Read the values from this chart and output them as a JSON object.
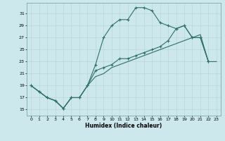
{
  "xlabel": "Humidex (Indice chaleur)",
  "bg_color": "#cce8ec",
  "grid_color": "#b8d8dc",
  "line_color": "#2d7068",
  "y_ticks": [
    15,
    17,
    19,
    21,
    23,
    25,
    27,
    29,
    31
  ],
  "ylim": [
    14.0,
    32.8
  ],
  "xlim": [
    -0.5,
    23.5
  ],
  "line1_x": [
    0,
    1,
    2,
    3,
    4,
    5,
    6,
    7,
    8,
    9,
    10,
    11,
    12,
    13,
    14,
    15,
    16,
    17,
    18,
    19,
    20,
    21,
    22,
    23
  ],
  "line1_y": [
    19.0,
    18.0,
    17.0,
    16.5,
    15.2,
    17.0,
    17.0,
    19.0,
    20.5,
    21.0,
    22.0,
    22.5,
    23.0,
    23.5,
    24.0,
    24.5,
    25.0,
    25.5,
    26.0,
    26.5,
    27.0,
    27.5,
    23.0,
    23.0
  ],
  "line2_x": [
    0,
    1,
    2,
    3,
    4,
    5,
    6,
    7,
    8,
    9,
    10,
    11,
    12,
    13,
    14,
    15,
    16,
    17,
    18,
    19,
    20,
    21,
    22,
    23
  ],
  "line2_y": [
    19.0,
    18.0,
    17.0,
    16.5,
    15.2,
    17.0,
    17.0,
    19.0,
    22.5,
    27.0,
    29.0,
    30.0,
    30.0,
    32.0,
    32.0,
    31.5,
    29.5,
    29.0,
    28.5,
    29.0,
    27.0,
    27.0,
    23.0,
    null
  ],
  "line3_x": [
    0,
    1,
    2,
    3,
    4,
    5,
    6,
    7,
    8,
    9,
    10,
    11,
    12,
    13,
    14,
    15,
    16,
    17,
    18,
    19,
    20,
    21,
    22,
    23
  ],
  "line3_y": [
    19.0,
    18.0,
    17.0,
    16.5,
    15.2,
    17.0,
    17.0,
    19.0,
    21.5,
    22.0,
    22.5,
    23.5,
    23.5,
    24.0,
    24.5,
    25.0,
    25.5,
    26.5,
    28.5,
    29.0,
    27.0,
    27.0,
    23.0,
    null
  ]
}
